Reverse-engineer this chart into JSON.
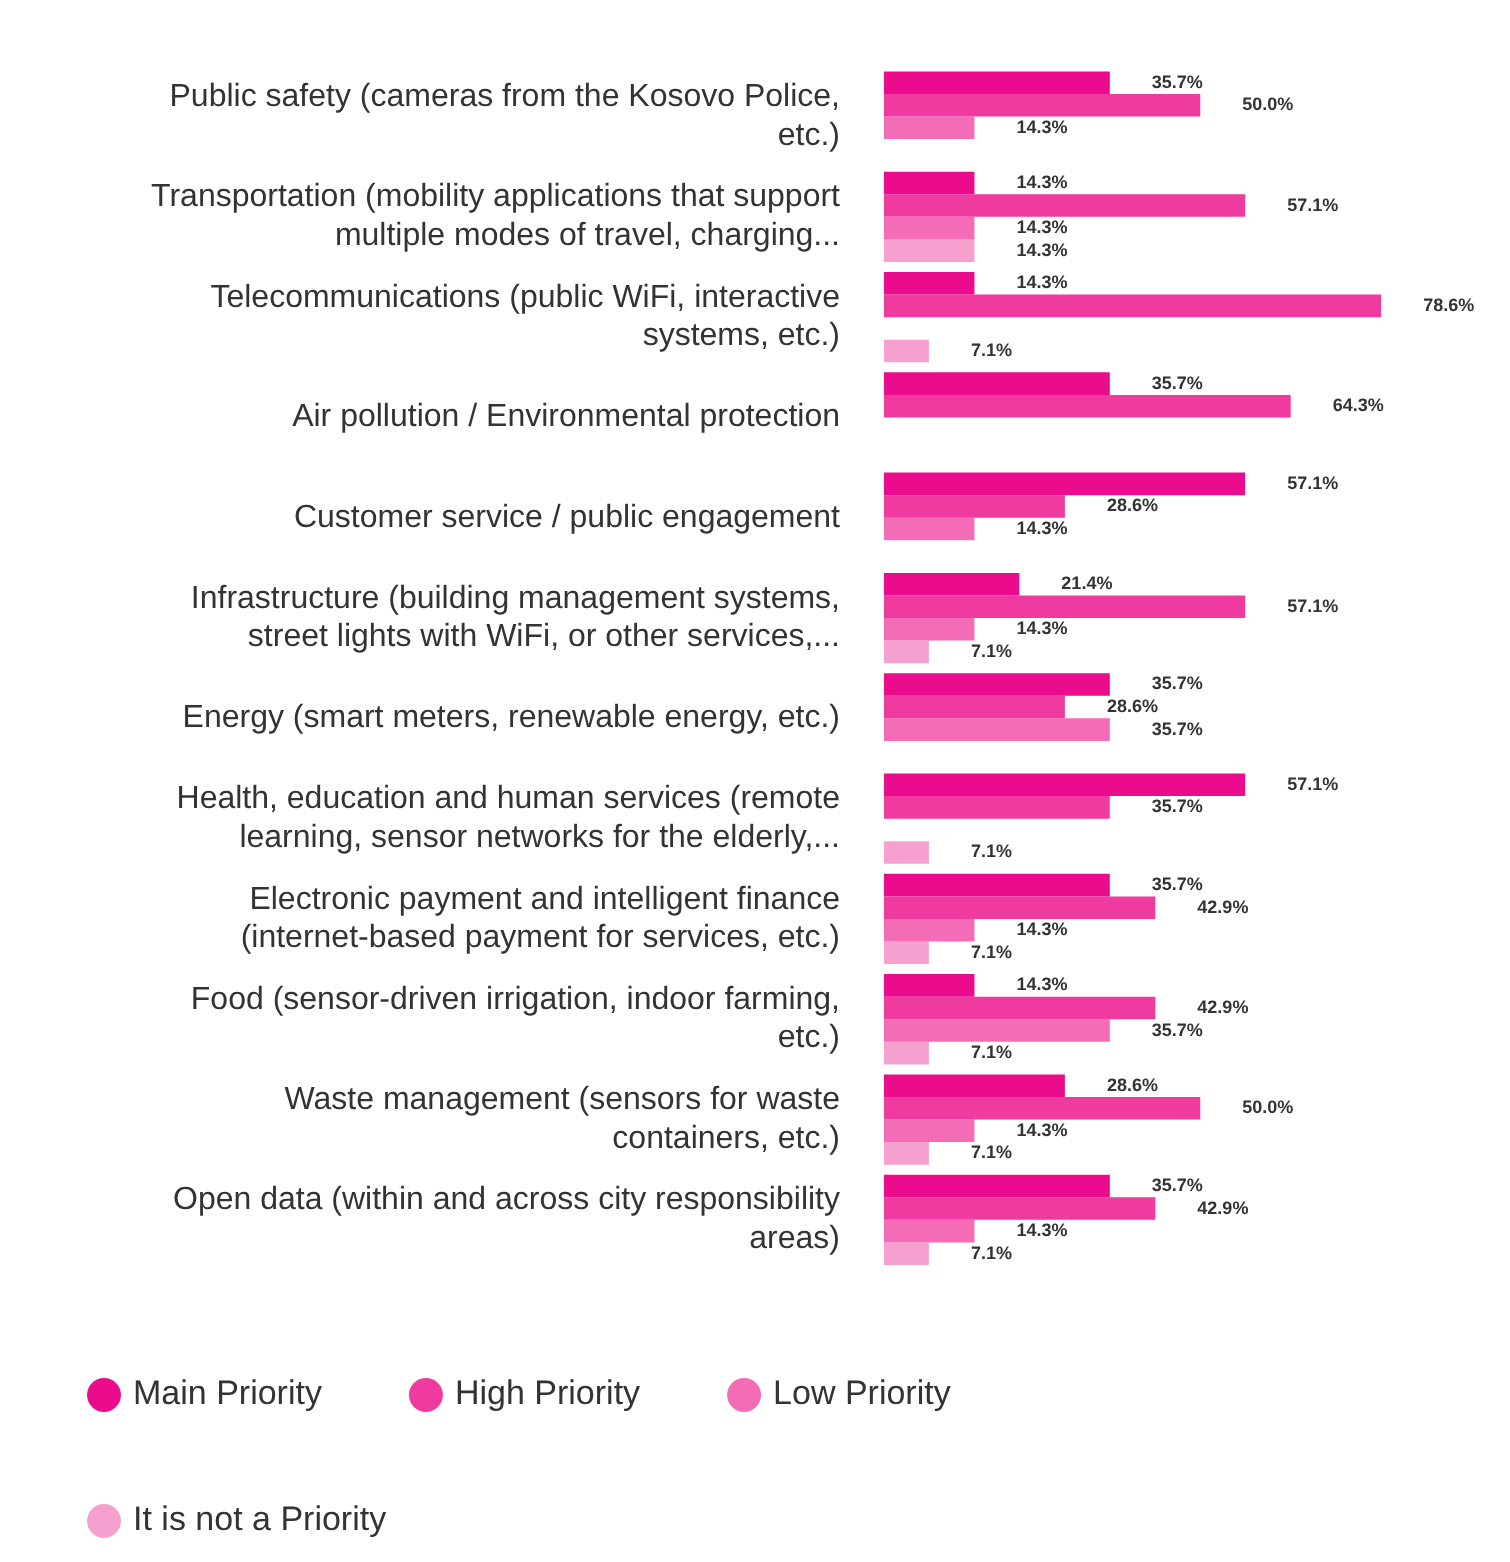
{
  "chart_data": {
    "type": "bar",
    "orientation": "horizontal",
    "categories": [
      "Public safety (cameras from the Kosovo Police, etc.)",
      "Transportation (mobility applications that support multiple modes of travel, charging...",
      "Telecommunications (public WiFi, interactive systems, etc.)",
      "Air pollution / Environmental protection",
      "Customer service / public engagement",
      "Infrastructure (building management systems, street lights with WiFi, or other services,...",
      "Energy (smart meters, renewable energy, etc.)",
      "Health, education and human services (remote learning, sensor networks for the elderly,...",
      "Electronic payment and intelligent finance (internet-based payment for services, etc.)",
      "Food (sensor-driven irrigation, indoor farming, etc.)",
      "Waste management (sensors for waste containers, etc.)",
      "Open data (within and across city responsibility areas)"
    ],
    "series": [
      {
        "name": "Main Priority",
        "color": "#ea0c8c",
        "values": [
          35.7,
          14.3,
          14.3,
          35.7,
          57.1,
          21.4,
          35.7,
          57.1,
          35.7,
          14.3,
          28.6,
          35.7
        ],
        "value_labels": [
          "35.7%",
          "14.3%",
          "14.3%",
          "35.7%",
          "57.1%",
          "21.4%",
          "35.7%",
          "57.1%",
          "35.7%",
          "14.3%",
          "28.6%",
          "35.7%"
        ]
      },
      {
        "name": "High Priority",
        "color": "#ef3aa0",
        "values": [
          50.0,
          57.1,
          78.6,
          64.3,
          28.6,
          57.1,
          28.6,
          35.7,
          42.9,
          42.9,
          50.0,
          42.9
        ],
        "value_labels": [
          "50.0%",
          "57.1%",
          "78.6%",
          "64.3%",
          "28.6%",
          "57.1%",
          "28.6%",
          "35.7%",
          "42.9%",
          "42.9%",
          "50.0%",
          "42.9%"
        ]
      },
      {
        "name": "Low Priority",
        "color": "#f46bb6",
        "values": [
          14.3,
          14.3,
          null,
          null,
          14.3,
          14.3,
          35.7,
          null,
          14.3,
          35.7,
          14.3,
          14.3
        ],
        "value_labels": [
          "14.3%",
          "14.3%",
          null,
          null,
          "14.3%",
          "14.3%",
          "35.7%",
          null,
          "14.3%",
          "35.7%",
          "14.3%",
          "14.3%"
        ]
      },
      {
        "name": "It is not a Priority",
        "color": "#f6a0cf",
        "values": [
          null,
          14.3,
          7.1,
          null,
          null,
          7.1,
          null,
          7.1,
          7.1,
          7.1,
          7.1,
          7.1
        ],
        "value_labels": [
          null,
          "14.3%",
          "7.1%",
          null,
          null,
          "7.1%",
          null,
          "7.1%",
          "7.1%",
          "7.1%",
          "7.1%",
          "7.1%"
        ]
      }
    ],
    "relative": false,
    "legend": "bottom"
  }
}
